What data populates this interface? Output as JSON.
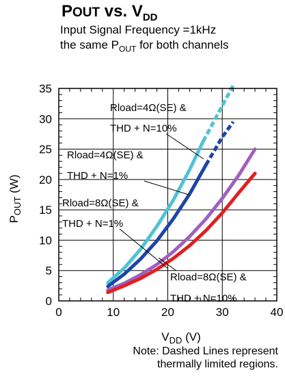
{
  "header": {
    "title_p": "P",
    "title_out": "OUT",
    "title_vs": " vs. V",
    "title_dd": "DD",
    "subtitle_line1": "Input Signal Frequency =1kHz",
    "subtitle_line2_pre": "the same P",
    "subtitle_line2_sub": "OUT",
    "subtitle_line2_post": " for both channels"
  },
  "chart_data": {
    "type": "line",
    "title": "POUT vs. VDD",
    "xlabel": "VDD (V)",
    "ylabel": "POUT (W)",
    "xlabel_main": "V",
    "xlabel_sub": "DD",
    "xlabel_unit": " (V)",
    "ylabel_main": "P",
    "ylabel_sub": "OUT",
    "ylabel_unit": " (W)",
    "xlim": [
      0,
      40
    ],
    "ylim": [
      0,
      35
    ],
    "x_ticks": [
      0,
      10,
      20,
      30,
      40
    ],
    "y_ticks": [
      0,
      5,
      10,
      15,
      20,
      25,
      30,
      35
    ],
    "grid": true,
    "series": [
      {
        "name": "Rload=4Ω(SE) & THD + N=10%",
        "label_line1": "Rload=4Ω(SE) &",
        "label_line2": "THD + N=10%",
        "color": "#4fc3d3",
        "x": [
          9,
          12,
          15,
          18,
          21,
          24,
          26.5
        ],
        "y": [
          3.0,
          5.4,
          8.5,
          12.3,
          16.6,
          21.6,
          26.3
        ],
        "dashed_x": [
          26.5,
          29,
          32
        ],
        "dashed_y": [
          26.3,
          30.5,
          35.5
        ]
      },
      {
        "name": "Rload=4Ω(SE) & THD + N=1%",
        "label_line1": "Rload=4Ω(SE) &",
        "label_line2": "THD + N=1%",
        "color": "#1e44a6",
        "x": [
          9,
          12,
          15,
          18,
          21,
          24,
          27
        ],
        "y": [
          2.4,
          4.4,
          6.9,
          9.9,
          13.5,
          17.6,
          22.4
        ],
        "dashed_x": [
          27,
          30,
          32
        ],
        "dashed_y": [
          22.4,
          27.0,
          29.5
        ]
      },
      {
        "name": "Rload=8Ω(SE) & THD + N=1%",
        "label_line1": "Rload=8Ω(SE) &",
        "label_line2": "THD + N=1%",
        "color": "#a060c0",
        "x": [
          9,
          12,
          15,
          18,
          21,
          24,
          27,
          30,
          33,
          36
        ],
        "y": [
          1.8,
          2.9,
          4.3,
          6.0,
          8.1,
          10.6,
          13.5,
          16.9,
          20.7,
          25.0
        ],
        "dashed_x": [],
        "dashed_y": []
      },
      {
        "name": "Rload=8Ω(SE) & THD + N=10%",
        "label_line1": "Rload=8Ω(SE) &",
        "label_line2": "THD + N=10%",
        "color": "#e02020",
        "x": [
          9,
          12,
          15,
          18,
          21,
          24,
          27,
          30,
          33,
          36
        ],
        "y": [
          1.4,
          2.5,
          3.7,
          5.2,
          7.0,
          9.1,
          11.6,
          14.5,
          17.8,
          21.0
        ],
        "dashed_x": [],
        "dashed_y": []
      }
    ]
  },
  "note": {
    "text": "Note: Dashed Lines represent\nthermally limited regions."
  }
}
